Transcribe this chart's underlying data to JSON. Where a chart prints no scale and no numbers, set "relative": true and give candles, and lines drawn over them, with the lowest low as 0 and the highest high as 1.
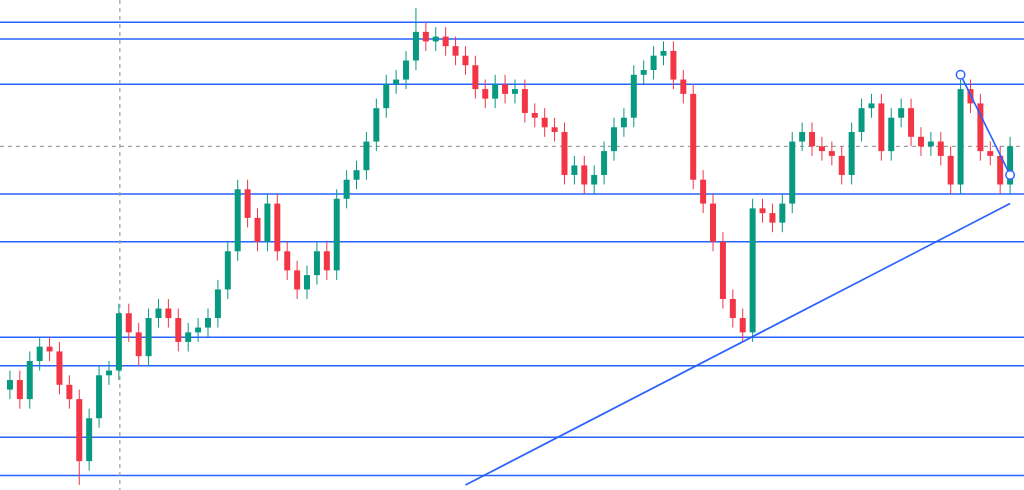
{
  "chart_data": {
    "type": "candlestick",
    "relative": true,
    "categories": [
      null,
      null,
      null,
      null,
      null,
      null,
      null,
      null,
      null,
      null,
      null,
      null,
      null,
      null,
      null,
      null,
      null,
      null,
      null,
      null,
      null,
      null,
      null,
      null,
      null,
      null,
      null,
      null,
      null,
      null,
      null,
      null,
      null,
      null,
      null,
      null,
      null,
      null,
      null,
      null,
      null,
      null,
      null,
      null,
      null,
      null,
      null,
      null,
      null,
      null,
      null,
      null,
      null,
      null,
      null,
      null,
      null,
      null,
      null,
      null,
      null,
      null,
      null,
      null,
      null,
      null,
      null,
      null,
      null,
      null,
      null,
      null,
      null,
      null,
      null,
      null,
      null,
      null,
      null,
      null,
      null,
      null,
      null,
      null,
      null,
      null,
      null,
      null,
      null,
      null,
      null,
      null,
      null,
      null,
      null,
      null,
      null,
      null,
      null,
      null,
      null,
      null
    ],
    "ohlc": [
      [
        0.2,
        0.24,
        0.18,
        0.22
      ],
      [
        0.22,
        0.24,
        0.16,
        0.18
      ],
      [
        0.18,
        0.28,
        0.16,
        0.26
      ],
      [
        0.26,
        0.31,
        0.24,
        0.29
      ],
      [
        0.29,
        0.31,
        0.26,
        0.28
      ],
      [
        0.28,
        0.3,
        0.19,
        0.21
      ],
      [
        0.21,
        0.23,
        0.16,
        0.18
      ],
      [
        0.18,
        0.2,
        0.0,
        0.05
      ],
      [
        0.05,
        0.16,
        0.03,
        0.14
      ],
      [
        0.14,
        0.25,
        0.12,
        0.23
      ],
      [
        0.23,
        0.26,
        0.21,
        0.24
      ],
      [
        0.24,
        0.38,
        0.22,
        0.36
      ],
      [
        0.36,
        0.38,
        0.3,
        0.32
      ],
      [
        0.32,
        0.34,
        0.25,
        0.27
      ],
      [
        0.27,
        0.37,
        0.25,
        0.35
      ],
      [
        0.35,
        0.39,
        0.33,
        0.37
      ],
      [
        0.37,
        0.39,
        0.33,
        0.35
      ],
      [
        0.35,
        0.37,
        0.28,
        0.3
      ],
      [
        0.3,
        0.34,
        0.28,
        0.32
      ],
      [
        0.32,
        0.35,
        0.3,
        0.33
      ],
      [
        0.33,
        0.37,
        0.31,
        0.35
      ],
      [
        0.35,
        0.43,
        0.33,
        0.41
      ],
      [
        0.41,
        0.51,
        0.39,
        0.49
      ],
      [
        0.49,
        0.64,
        0.47,
        0.62
      ],
      [
        0.62,
        0.64,
        0.54,
        0.56
      ],
      [
        0.56,
        0.58,
        0.49,
        0.51
      ],
      [
        0.51,
        0.61,
        0.49,
        0.59
      ],
      [
        0.59,
        0.61,
        0.47,
        0.49
      ],
      [
        0.49,
        0.51,
        0.43,
        0.45
      ],
      [
        0.45,
        0.47,
        0.39,
        0.41
      ],
      [
        0.41,
        0.46,
        0.39,
        0.44
      ],
      [
        0.44,
        0.51,
        0.42,
        0.49
      ],
      [
        0.49,
        0.51,
        0.43,
        0.45
      ],
      [
        0.45,
        0.62,
        0.43,
        0.6
      ],
      [
        0.6,
        0.66,
        0.58,
        0.64
      ],
      [
        0.64,
        0.68,
        0.62,
        0.66
      ],
      [
        0.66,
        0.74,
        0.64,
        0.72
      ],
      [
        0.72,
        0.81,
        0.7,
        0.79
      ],
      [
        0.79,
        0.86,
        0.77,
        0.84
      ],
      [
        0.84,
        0.87,
        0.82,
        0.85
      ],
      [
        0.85,
        0.91,
        0.83,
        0.89
      ],
      [
        0.89,
        1.0,
        0.87,
        0.95
      ],
      [
        0.95,
        0.97,
        0.91,
        0.93
      ],
      [
        0.93,
        0.96,
        0.91,
        0.94
      ],
      [
        0.94,
        0.96,
        0.9,
        0.92
      ],
      [
        0.92,
        0.94,
        0.88,
        0.9
      ],
      [
        0.9,
        0.92,
        0.86,
        0.88
      ],
      [
        0.88,
        0.9,
        0.81,
        0.83
      ],
      [
        0.83,
        0.85,
        0.79,
        0.81
      ],
      [
        0.81,
        0.86,
        0.79,
        0.84
      ],
      [
        0.84,
        0.86,
        0.8,
        0.82
      ],
      [
        0.82,
        0.85,
        0.8,
        0.83
      ],
      [
        0.83,
        0.85,
        0.76,
        0.78
      ],
      [
        0.78,
        0.8,
        0.75,
        0.77
      ],
      [
        0.77,
        0.79,
        0.73,
        0.75
      ],
      [
        0.75,
        0.77,
        0.72,
        0.74
      ],
      [
        0.74,
        0.76,
        0.63,
        0.65
      ],
      [
        0.65,
        0.69,
        0.63,
        0.67
      ],
      [
        0.67,
        0.69,
        0.61,
        0.63
      ],
      [
        0.63,
        0.67,
        0.61,
        0.65
      ],
      [
        0.65,
        0.72,
        0.63,
        0.7
      ],
      [
        0.7,
        0.77,
        0.68,
        0.75
      ],
      [
        0.75,
        0.79,
        0.73,
        0.77
      ],
      [
        0.77,
        0.88,
        0.75,
        0.86
      ],
      [
        0.86,
        0.89,
        0.84,
        0.87
      ],
      [
        0.87,
        0.92,
        0.85,
        0.9
      ],
      [
        0.9,
        0.93,
        0.88,
        0.91
      ],
      [
        0.91,
        0.93,
        0.83,
        0.85
      ],
      [
        0.85,
        0.87,
        0.8,
        0.82
      ],
      [
        0.82,
        0.84,
        0.62,
        0.64
      ],
      [
        0.64,
        0.66,
        0.57,
        0.59
      ],
      [
        0.59,
        0.61,
        0.49,
        0.51
      ],
      [
        0.51,
        0.53,
        0.37,
        0.39
      ],
      [
        0.39,
        0.41,
        0.33,
        0.35
      ],
      [
        0.35,
        0.37,
        0.3,
        0.32
      ],
      [
        0.32,
        0.6,
        0.3,
        0.58
      ],
      [
        0.58,
        0.6,
        0.55,
        0.57
      ],
      [
        0.57,
        0.59,
        0.53,
        0.55
      ],
      [
        0.55,
        0.61,
        0.53,
        0.59
      ],
      [
        0.59,
        0.74,
        0.57,
        0.72
      ],
      [
        0.72,
        0.76,
        0.7,
        0.74
      ],
      [
        0.74,
        0.76,
        0.69,
        0.71
      ],
      [
        0.71,
        0.73,
        0.68,
        0.7
      ],
      [
        0.7,
        0.72,
        0.67,
        0.69
      ],
      [
        0.69,
        0.71,
        0.63,
        0.65
      ],
      [
        0.65,
        0.76,
        0.63,
        0.74
      ],
      [
        0.74,
        0.81,
        0.72,
        0.79
      ],
      [
        0.79,
        0.82,
        0.77,
        0.8
      ],
      [
        0.8,
        0.82,
        0.68,
        0.7
      ],
      [
        0.7,
        0.79,
        0.68,
        0.77
      ],
      [
        0.77,
        0.81,
        0.75,
        0.79
      ],
      [
        0.79,
        0.81,
        0.71,
        0.73
      ],
      [
        0.73,
        0.75,
        0.69,
        0.71
      ],
      [
        0.71,
        0.74,
        0.69,
        0.72
      ],
      [
        0.72,
        0.74,
        0.67,
        0.69
      ],
      [
        0.69,
        0.71,
        0.61,
        0.63
      ],
      [
        0.63,
        0.85,
        0.61,
        0.83
      ],
      [
        0.83,
        0.85,
        0.78,
        0.8
      ],
      [
        0.8,
        0.82,
        0.68,
        0.7
      ],
      [
        0.7,
        0.72,
        0.67,
        0.69
      ],
      [
        0.69,
        0.71,
        0.61,
        0.63
      ],
      [
        0.63,
        0.73,
        0.61,
        0.71
      ]
    ],
    "colors": [
      "#089981",
      "#f23645",
      "#089981",
      "#089981",
      "#f23645",
      "#f23645",
      "#f23645",
      "#f23645",
      "#089981",
      "#089981",
      "#089981",
      "#089981",
      "#f23645",
      "#f23645",
      "#089981",
      "#089981",
      "#f23645",
      "#f23645",
      "#089981",
      "#089981",
      "#089981",
      "#089981",
      "#089981",
      "#089981",
      "#f23645",
      "#f23645",
      "#089981",
      "#f23645",
      "#f23645",
      "#f23645",
      "#089981",
      "#089981",
      "#f23645",
      "#089981",
      "#089981",
      "#089981",
      "#089981",
      "#089981",
      "#089981",
      "#089981",
      "#089981",
      "#089981",
      "#f23645",
      "#089981",
      "#f23645",
      "#f23645",
      "#f23645",
      "#f23645",
      "#f23645",
      "#089981",
      "#f23645",
      "#089981",
      "#f23645",
      "#f23645",
      "#f23645",
      "#f23645",
      "#f23645",
      "#089981",
      "#f23645",
      "#089981",
      "#089981",
      "#089981",
      "#089981",
      "#089981",
      "#089981",
      "#089981",
      "#089981",
      "#f23645",
      "#f23645",
      "#f23645",
      "#f23645",
      "#f23645",
      "#f23645",
      "#f23645",
      "#f23645",
      "#089981",
      "#f23645",
      "#f23645",
      "#089981",
      "#089981",
      "#089981",
      "#f23645",
      "#f23645",
      "#f23645",
      "#f23645",
      "#089981",
      "#089981",
      "#089981",
      "#f23645",
      "#089981",
      "#089981",
      "#f23645",
      "#f23645",
      "#089981",
      "#f23645",
      "#f23645",
      "#089981",
      "#f23645",
      "#f23645",
      "#f23645",
      "#f23645",
      "#089981"
    ],
    "series": [
      {
        "type": "line",
        "values": [
          null,
          null,
          null,
          null,
          null,
          null,
          null,
          null,
          null,
          null,
          null,
          null,
          null,
          null,
          null,
          null,
          null,
          null,
          null,
          null,
          null,
          null,
          null,
          null,
          null,
          null,
          null,
          null,
          null,
          null,
          null,
          null,
          null,
          null,
          null,
          null,
          null,
          null,
          null,
          null,
          null,
          null,
          null,
          null,
          null,
          null,
          0.0,
          null,
          null,
          null,
          null,
          null,
          null,
          null,
          null,
          null,
          null,
          null,
          null,
          null,
          null,
          null,
          null,
          null,
          null,
          null,
          null,
          null,
          null,
          null,
          null,
          null,
          null,
          null,
          null,
          null,
          null,
          null,
          null,
          null,
          null,
          null,
          null,
          null,
          null,
          null,
          null,
          null,
          null,
          null,
          null,
          null,
          null,
          null,
          null,
          null,
          null,
          null,
          null,
          null,
          null,
          0.59
        ],
        "color": "#2962ff",
        "marker": "none"
      },
      {
        "type": "line",
        "values": [
          null,
          null,
          null,
          null,
          null,
          null,
          null,
          null,
          null,
          null,
          null,
          null,
          null,
          null,
          null,
          null,
          null,
          null,
          null,
          null,
          null,
          null,
          null,
          null,
          null,
          null,
          null,
          null,
          null,
          null,
          null,
          null,
          null,
          null,
          null,
          null,
          null,
          null,
          null,
          null,
          null,
          null,
          null,
          null,
          null,
          null,
          null,
          null,
          null,
          null,
          null,
          null,
          null,
          null,
          null,
          null,
          null,
          null,
          null,
          null,
          null,
          null,
          null,
          null,
          null,
          null,
          null,
          null,
          null,
          null,
          null,
          null,
          null,
          null,
          null,
          null,
          null,
          null,
          null,
          null,
          null,
          null,
          null,
          null,
          null,
          null,
          null,
          null,
          null,
          null,
          null,
          null,
          null,
          null,
          null,
          null,
          0.86,
          null,
          null,
          null,
          null,
          0.65
        ],
        "color": "#2962ff",
        "marker": "circle"
      }
    ],
    "ref_lines": [
      {
        "axis": "y",
        "value": 0.97,
        "color": "#2962ff",
        "line_style": "solid"
      },
      {
        "axis": "y",
        "value": 0.935,
        "color": "#2962ff",
        "line_style": "solid"
      },
      {
        "axis": "y",
        "value": 0.84,
        "color": "#2962ff",
        "line_style": "solid"
      },
      {
        "axis": "y",
        "value": 0.61,
        "color": "#2962ff",
        "line_style": "solid"
      },
      {
        "axis": "y",
        "value": 0.51,
        "color": "#2962ff",
        "line_style": "solid"
      },
      {
        "axis": "y",
        "value": 0.31,
        "color": "#2962ff",
        "line_style": "solid"
      },
      {
        "axis": "y",
        "value": 0.25,
        "color": "#2962ff",
        "line_style": "solid"
      },
      {
        "axis": "y",
        "value": 0.1,
        "color": "#2962ff",
        "line_style": "solid"
      },
      {
        "axis": "y",
        "value": 0.02,
        "color": "#2962ff",
        "line_style": "solid"
      },
      {
        "axis": "y",
        "value": 0.71,
        "color": "#9e9e9e",
        "line_style": "dashed"
      }
    ]
  }
}
